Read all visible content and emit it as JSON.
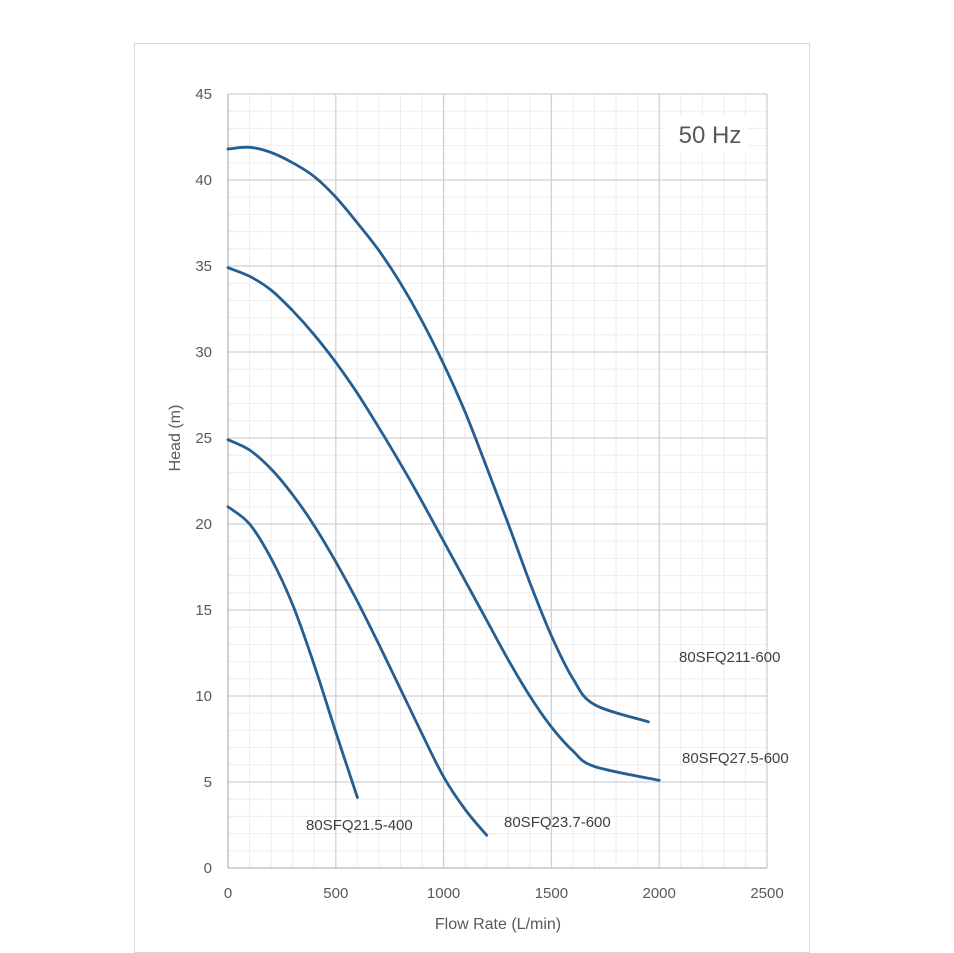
{
  "chart_data": {
    "type": "line",
    "title": "",
    "annotation": "50 Hz",
    "xlabel": "Flow Rate (L/min)",
    "ylabel": "Head (m)",
    "xlim": [
      0,
      2500
    ],
    "ylim": [
      0,
      45
    ],
    "xticks": [
      0,
      500,
      1000,
      1500,
      2000,
      2500
    ],
    "yticks": [
      0,
      5,
      10,
      15,
      20,
      25,
      30,
      35,
      40,
      45
    ],
    "grid": true,
    "minor_grid": true,
    "line_color": "#255e91",
    "series": [
      {
        "label": "80SFQ211-600",
        "points": [
          [
            0,
            41.8
          ],
          [
            100,
            41.9
          ],
          [
            200,
            41.6
          ],
          [
            300,
            41.0
          ],
          [
            400,
            40.2
          ],
          [
            500,
            39.0
          ],
          [
            600,
            37.5
          ],
          [
            700,
            35.9
          ],
          [
            800,
            34.0
          ],
          [
            900,
            31.8
          ],
          [
            1000,
            29.3
          ],
          [
            1100,
            26.5
          ],
          [
            1200,
            23.3
          ],
          [
            1300,
            20.0
          ],
          [
            1400,
            16.6
          ],
          [
            1500,
            13.5
          ],
          [
            1600,
            11.0
          ],
          [
            1700,
            9.5
          ],
          [
            1950,
            8.5
          ]
        ]
      },
      {
        "label": "80SFQ27.5-600",
        "points": [
          [
            0,
            34.9
          ],
          [
            100,
            34.4
          ],
          [
            200,
            33.6
          ],
          [
            300,
            32.4
          ],
          [
            400,
            31.0
          ],
          [
            500,
            29.4
          ],
          [
            600,
            27.6
          ],
          [
            700,
            25.6
          ],
          [
            800,
            23.5
          ],
          [
            900,
            21.3
          ],
          [
            1000,
            19.0
          ],
          [
            1100,
            16.7
          ],
          [
            1200,
            14.4
          ],
          [
            1300,
            12.1
          ],
          [
            1400,
            10.0
          ],
          [
            1500,
            8.2
          ],
          [
            1600,
            6.8
          ],
          [
            1700,
            5.9
          ],
          [
            2000,
            5.1
          ]
        ]
      },
      {
        "label": "80SFQ23.7-600",
        "points": [
          [
            0,
            24.9
          ],
          [
            100,
            24.3
          ],
          [
            200,
            23.2
          ],
          [
            300,
            21.7
          ],
          [
            400,
            19.9
          ],
          [
            500,
            17.8
          ],
          [
            600,
            15.5
          ],
          [
            700,
            13.0
          ],
          [
            800,
            10.4
          ],
          [
            900,
            7.8
          ],
          [
            1000,
            5.3
          ],
          [
            1100,
            3.4
          ],
          [
            1200,
            1.9
          ]
        ]
      },
      {
        "label": "80SFQ21.5-400",
        "points": [
          [
            0,
            21.0
          ],
          [
            100,
            20.0
          ],
          [
            200,
            18.0
          ],
          [
            300,
            15.3
          ],
          [
            400,
            11.8
          ],
          [
            500,
            7.9
          ],
          [
            600,
            4.1
          ]
        ]
      }
    ]
  }
}
